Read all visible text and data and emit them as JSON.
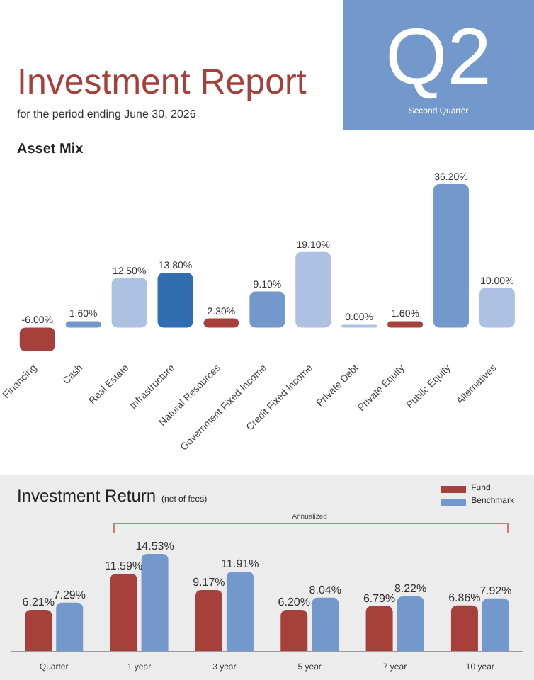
{
  "chart_data": [
    {
      "type": "bar",
      "title": "Asset Mix",
      "annotations": [
        "Investment Report",
        "for the period ending June 30, 2026",
        "Q2",
        "Second Quarter"
      ],
      "categories": [
        "Financing",
        "Cash",
        "Real Estate",
        "Infrastructure",
        "Natural Resources",
        "Government Fixed Income",
        "Credit Fixed Income",
        "Private Debt",
        "Private Equity",
        "Public Equity",
        "Alternatives"
      ],
      "values": [
        -6.0,
        1.6,
        12.5,
        13.8,
        2.3,
        9.1,
        19.1,
        0.0,
        1.6,
        36.2,
        10.0
      ],
      "value_labels": [
        "-6.00%",
        "1.60%",
        "12.50%",
        "13.80%",
        "2.30%",
        "9.10%",
        "19.10%",
        "0.00%",
        "1.60%",
        "36.20%",
        "10.00%"
      ],
      "colors": [
        "#a5403a",
        "#7398cb",
        "#adc1e2",
        "#306db1",
        "#a5403a",
        "#7398cb",
        "#adc1e2",
        "#adc1e2",
        "#a5403a",
        "#7398cb",
        "#adc1e2"
      ]
    },
    {
      "type": "bar",
      "title": "Investment Return",
      "subtitle": "(net of fees)",
      "annotations": [
        "Annualized"
      ],
      "legend": "top right",
      "categories": [
        "Quarter",
        "1 year",
        "3 year",
        "5 year",
        "7 year",
        "10 year"
      ],
      "series": [
        {
          "name": "Fund",
          "color": "#a5403a",
          "values": [
            6.21,
            11.59,
            9.17,
            6.2,
            6.79,
            6.86
          ],
          "value_labels": [
            "6.21%",
            "11.59%",
            "9.17%",
            "6.20%",
            "6.79%",
            "6.86%"
          ]
        },
        {
          "name": "Benchmark",
          "color": "#7398cb",
          "values": [
            7.29,
            14.53,
            11.91,
            8.04,
            8.22,
            7.92
          ],
          "value_labels": [
            "7.29%",
            "14.53%",
            "11.91%",
            "8.04%",
            "8.22%",
            "7.92%"
          ]
        }
      ]
    }
  ]
}
